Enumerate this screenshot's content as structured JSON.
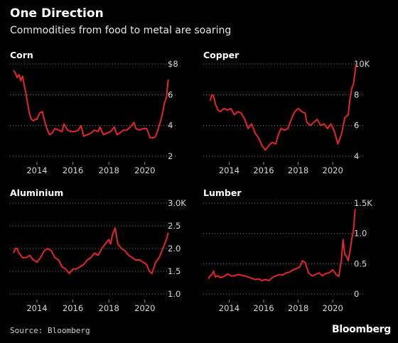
{
  "header": {
    "title": "One Direction",
    "subtitle": "Commodities from food to metal are soaring"
  },
  "footer": {
    "source": "Source: Bloomberg",
    "brand": "Bloomberg"
  },
  "colors": {
    "background": "#000000",
    "series": "#e3262b",
    "text": "#ffffff"
  },
  "chart_data": [
    {
      "type": "line",
      "title": "Corn",
      "xlim": [
        2012.5,
        2022.3
      ],
      "xticks": [
        2014,
        2016,
        2018,
        2020
      ],
      "xtick_labels": [
        "2014",
        "2016",
        "2018",
        "2020"
      ],
      "ylim": [
        2,
        8
      ],
      "yticks": [
        2,
        4,
        6,
        8
      ],
      "ytick_labels": [
        "2",
        "4",
        "6",
        "$8"
      ],
      "series": [
        {
          "x": [
            2012.7,
            2012.8,
            2012.9,
            2013.0,
            2013.1,
            2013.2,
            2013.3,
            2013.4,
            2013.5,
            2013.6,
            2013.7,
            2013.8,
            2013.9,
            2014.0,
            2014.15,
            2014.3,
            2014.45,
            2014.55,
            2014.7,
            2014.85,
            2015.0,
            2015.2,
            2015.4,
            2015.5,
            2015.7,
            2015.9,
            2016.1,
            2016.3,
            2016.45,
            2016.6,
            2016.8,
            2017.0,
            2017.2,
            2017.4,
            2017.5,
            2017.7,
            2017.9,
            2018.1,
            2018.3,
            2018.45,
            2018.6,
            2018.8,
            2019.0,
            2019.2,
            2019.4,
            2019.5,
            2019.7,
            2019.9,
            2020.1,
            2020.3,
            2020.5,
            2020.6,
            2020.7,
            2020.8,
            2020.9,
            2021.0,
            2021.1,
            2021.2,
            2021.3
          ],
          "y": [
            7.6,
            7.4,
            7.1,
            7.3,
            6.9,
            7.2,
            6.6,
            6.0,
            5.3,
            4.7,
            4.4,
            4.3,
            4.4,
            4.4,
            4.8,
            4.9,
            4.2,
            3.8,
            3.4,
            3.5,
            3.8,
            3.7,
            3.6,
            4.1,
            3.7,
            3.6,
            3.6,
            3.7,
            4.0,
            3.3,
            3.4,
            3.5,
            3.7,
            3.6,
            3.9,
            3.4,
            3.5,
            3.6,
            3.9,
            3.4,
            3.5,
            3.7,
            3.7,
            3.9,
            4.2,
            3.8,
            3.7,
            3.8,
            3.8,
            3.2,
            3.2,
            3.3,
            3.6,
            4.0,
            4.4,
            4.9,
            5.5,
            5.8,
            7.0
          ]
        }
      ]
    },
    {
      "type": "line",
      "title": "Copper",
      "xlim": [
        2012.5,
        2022.3
      ],
      "xticks": [
        2014,
        2016,
        2018,
        2020
      ],
      "xtick_labels": [
        "2014",
        "2016",
        "2018",
        "2020"
      ],
      "ylim": [
        4,
        10
      ],
      "yticks": [
        4,
        6,
        8,
        10
      ],
      "ytick_labels": [
        "4",
        "6",
        "8",
        "10K"
      ],
      "series": [
        {
          "x": [
            2012.9,
            2013.0,
            2013.1,
            2013.2,
            2013.35,
            2013.5,
            2013.7,
            2013.9,
            2014.1,
            2014.3,
            2014.5,
            2014.7,
            2014.9,
            2015.1,
            2015.3,
            2015.5,
            2015.7,
            2015.9,
            2016.1,
            2016.3,
            2016.5,
            2016.7,
            2016.85,
            2017.0,
            2017.2,
            2017.4,
            2017.6,
            2017.8,
            2018.0,
            2018.2,
            2018.4,
            2018.5,
            2018.7,
            2018.9,
            2019.1,
            2019.3,
            2019.5,
            2019.7,
            2019.9,
            2020.1,
            2020.2,
            2020.3,
            2020.5,
            2020.7,
            2020.9,
            2021.0,
            2021.1,
            2021.2,
            2021.3,
            2021.35
          ],
          "y": [
            7.6,
            8.0,
            7.9,
            7.4,
            7.0,
            6.9,
            7.1,
            7.0,
            7.1,
            6.7,
            6.9,
            6.8,
            6.4,
            5.8,
            6.1,
            5.5,
            5.2,
            4.7,
            4.4,
            4.7,
            4.9,
            4.8,
            5.4,
            5.8,
            5.7,
            5.8,
            6.4,
            6.9,
            7.1,
            6.9,
            6.8,
            6.2,
            6.0,
            6.2,
            6.4,
            6.0,
            6.1,
            5.8,
            6.1,
            5.6,
            5.2,
            4.8,
            5.4,
            6.5,
            6.7,
            7.7,
            8.4,
            8.7,
            9.5,
            10.0
          ]
        }
      ]
    },
    {
      "type": "line",
      "title": "Aluminium",
      "xlim": [
        2012.5,
        2022.3
      ],
      "xticks": [
        2014,
        2016,
        2018,
        2020
      ],
      "xtick_labels": [
        "2014",
        "2016",
        "2018",
        "2020"
      ],
      "ylim": [
        1.0,
        3.0
      ],
      "yticks": [
        1.0,
        1.5,
        2.0,
        2.5,
        3.0
      ],
      "ytick_labels": [
        "1.0",
        "1.5",
        "2.0",
        "2.5",
        "3.0K"
      ],
      "series": [
        {
          "x": [
            2012.7,
            2012.8,
            2012.9,
            2013.0,
            2013.2,
            2013.4,
            2013.6,
            2013.8,
            2014.0,
            2014.2,
            2014.4,
            2014.6,
            2014.8,
            2015.0,
            2015.2,
            2015.4,
            2015.6,
            2015.8,
            2016.0,
            2016.2,
            2016.4,
            2016.6,
            2016.8,
            2017.0,
            2017.2,
            2017.4,
            2017.6,
            2017.8,
            2018.0,
            2018.1,
            2018.2,
            2018.35,
            2018.5,
            2018.7,
            2018.9,
            2019.1,
            2019.3,
            2019.5,
            2019.7,
            2019.9,
            2020.1,
            2020.25,
            2020.4,
            2020.6,
            2020.8,
            2021.0,
            2021.1,
            2021.2,
            2021.3
          ],
          "y": [
            1.9,
            2.0,
            2.0,
            1.9,
            1.8,
            1.8,
            1.85,
            1.75,
            1.7,
            1.8,
            1.95,
            2.0,
            1.95,
            1.8,
            1.75,
            1.6,
            1.55,
            1.45,
            1.55,
            1.55,
            1.6,
            1.65,
            1.75,
            1.8,
            1.9,
            1.85,
            2.0,
            2.1,
            2.2,
            2.1,
            2.3,
            2.45,
            2.1,
            2.0,
            1.95,
            1.85,
            1.8,
            1.75,
            1.75,
            1.7,
            1.65,
            1.5,
            1.45,
            1.7,
            1.8,
            2.0,
            2.1,
            2.2,
            2.35
          ]
        }
      ]
    },
    {
      "type": "line",
      "title": "Lumber",
      "xlim": [
        2012.5,
        2022.3
      ],
      "xticks": [
        2014,
        2016,
        2018,
        2020
      ],
      "xtick_labels": [
        "2014",
        "2016",
        "2018",
        "2020"
      ],
      "ylim": [
        0,
        1.5
      ],
      "yticks": [
        0,
        0.5,
        1.0,
        1.5
      ],
      "ytick_labels": [
        "0",
        "0.5",
        "1.0",
        "1.5K"
      ],
      "series": [
        {
          "x": [
            2012.8,
            2012.9,
            2013.0,
            2013.1,
            2013.2,
            2013.35,
            2013.5,
            2013.7,
            2013.9,
            2014.1,
            2014.3,
            2014.5,
            2014.7,
            2014.9,
            2015.1,
            2015.3,
            2015.5,
            2015.7,
            2015.9,
            2016.1,
            2016.3,
            2016.5,
            2016.7,
            2016.9,
            2017.1,
            2017.3,
            2017.5,
            2017.7,
            2017.9,
            2018.1,
            2018.25,
            2018.4,
            2018.6,
            2018.8,
            2019.0,
            2019.2,
            2019.4,
            2019.6,
            2019.8,
            2020.0,
            2020.2,
            2020.35,
            2020.5,
            2020.6,
            2020.7,
            2020.8,
            2020.9,
            2021.0,
            2021.1,
            2021.2,
            2021.3
          ],
          "y": [
            0.25,
            0.3,
            0.32,
            0.38,
            0.28,
            0.3,
            0.27,
            0.29,
            0.33,
            0.3,
            0.3,
            0.32,
            0.31,
            0.3,
            0.28,
            0.26,
            0.24,
            0.25,
            0.22,
            0.24,
            0.22,
            0.27,
            0.3,
            0.32,
            0.31,
            0.35,
            0.36,
            0.4,
            0.42,
            0.45,
            0.55,
            0.52,
            0.35,
            0.3,
            0.32,
            0.35,
            0.3,
            0.34,
            0.35,
            0.4,
            0.32,
            0.29,
            0.55,
            0.9,
            0.65,
            0.62,
            0.55,
            0.7,
            0.9,
            1.05,
            1.4
          ]
        }
      ]
    }
  ]
}
